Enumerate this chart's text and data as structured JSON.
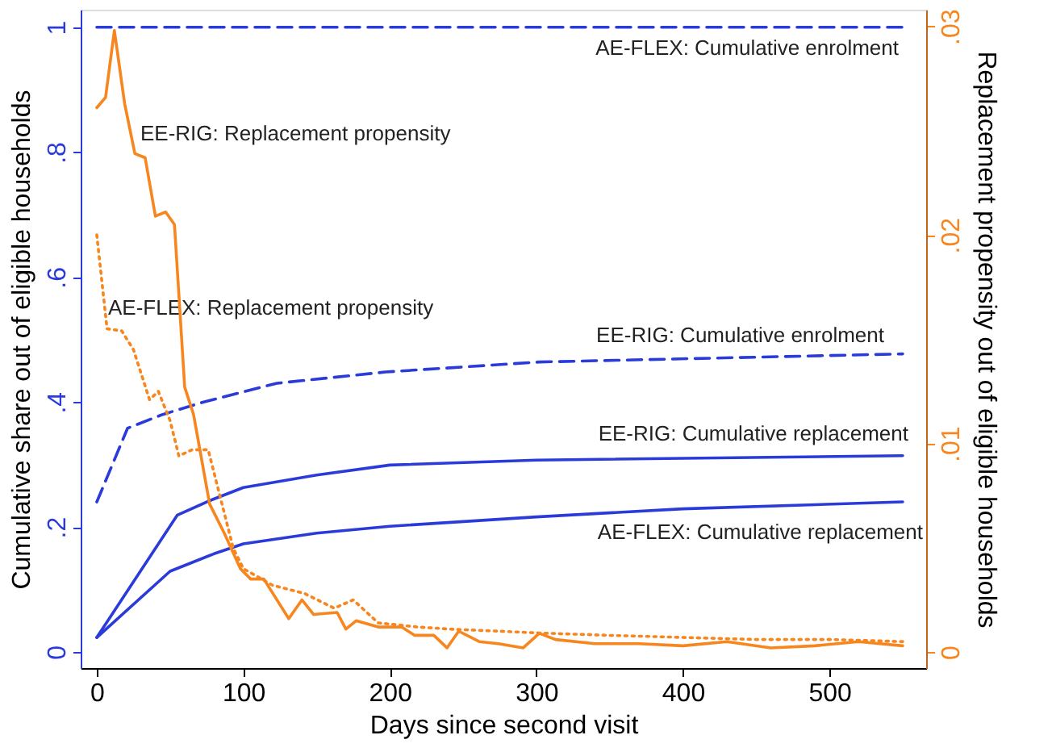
{
  "chart_data": {
    "type": "line",
    "xlabel": "Days since second visit",
    "ylabel": "Cumulative share out of eligible households",
    "y2label": "Replacement propensity out of eligible households",
    "xlim": [
      -11,
      566
    ],
    "xticks": [
      0,
      100,
      200,
      300,
      400,
      500
    ],
    "ylim": [
      -0.026,
      1.028
    ],
    "yticks": [
      {
        "value": 0,
        "label": "0"
      },
      {
        "value": 0.2,
        "label": ".2"
      },
      {
        "value": 0.4,
        "label": ".4"
      },
      {
        "value": 0.6,
        "label": ".6"
      },
      {
        "value": 0.8,
        "label": ".8"
      },
      {
        "value": 1,
        "label": "1"
      }
    ],
    "y2lim": [
      -0.00077,
      0.0308
    ],
    "y2ticks": [
      {
        "value": 0,
        "label": "0"
      },
      {
        "value": 0.01,
        "label": ".01"
      },
      {
        "value": 0.02,
        "label": ".02"
      },
      {
        "value": 0.03,
        "label": ".03"
      }
    ],
    "marker": "none",
    "series": [
      {
        "color": "#2b3bd9",
        "line_style": "dashed",
        "x": [
          0,
          550
        ],
        "values": [
          1,
          1
        ]
      },
      {
        "color": "#2b3bd9",
        "line_style": "dashed",
        "x": [
          0,
          21,
          45,
          73,
          123,
          197,
          302,
          550
        ],
        "values": [
          0.24,
          0.358,
          0.38,
          0.4,
          0.43,
          0.448,
          0.464,
          0.477
        ]
      },
      {
        "color": "#2b3bd9",
        "line_style": "solid",
        "x": [
          0,
          55,
          77,
          100,
          150,
          200,
          300,
          550
        ],
        "values": [
          0.023,
          0.219,
          0.242,
          0.263,
          0.283,
          0.299,
          0.307,
          0.314
        ]
      },
      {
        "color": "#2b3bd9",
        "line_style": "solid",
        "x": [
          0,
          50,
          80,
          100,
          150,
          200,
          300,
          400,
          550
        ],
        "values": [
          0.023,
          0.129,
          0.157,
          0.173,
          0.19,
          0.201,
          0.216,
          0.229,
          0.24
        ]
      },
      {
        "color": "#f7861e",
        "line_style": "solid",
        "axis": "y2",
        "x": [
          0,
          6,
          12,
          19,
          26,
          33,
          40,
          47,
          53,
          60,
          66,
          77,
          87,
          98,
          105,
          114,
          131,
          140,
          148,
          164,
          170,
          177,
          192,
          208,
          217,
          230,
          239,
          247,
          261,
          274,
          291,
          302,
          313,
          340,
          370,
          400,
          430,
          460,
          490,
          520,
          550
        ],
        "values": [
          0.0261,
          0.0266,
          0.0298,
          0.0263,
          0.0239,
          0.0237,
          0.0209,
          0.0211,
          0.0205,
          0.0127,
          0.0114,
          0.0071,
          0.0057,
          0.004,
          0.0035,
          0.0035,
          0.0016,
          0.0025,
          0.0018,
          0.0019,
          0.0011,
          0.0015,
          0.0012,
          0.0012,
          0.0008,
          0.0008,
          0.0002,
          0.001,
          0.0005,
          0.0004,
          0.0002,
          0.0009,
          0.0006,
          0.0004,
          0.0004,
          0.0003,
          0.0005,
          0.0002,
          0.0003,
          0.0005,
          0.0003
        ]
      },
      {
        "color": "#f7861e",
        "line_style": "dotted",
        "axis": "y2",
        "x": [
          0,
          7,
          17,
          25,
          36,
          42,
          50,
          56,
          65,
          76,
          84,
          93,
          100,
          120,
          142,
          162,
          175,
          192,
          219,
          241,
          274,
          307,
          350,
          400,
          450,
          500,
          550
        ],
        "values": [
          0.02,
          0.0155,
          0.0154,
          0.0145,
          0.0121,
          0.0125,
          0.0111,
          0.0094,
          0.0097,
          0.0097,
          0.0075,
          0.005,
          0.004,
          0.0032,
          0.0028,
          0.0021,
          0.0025,
          0.0014,
          0.0012,
          0.0011,
          0.001,
          0.0009,
          0.0008,
          0.0007,
          0.0006,
          0.0006,
          0.0005
        ]
      }
    ],
    "annotations": [
      "AE-FLEX: Cumulative enrolment",
      "EE-RIG: Replacement propensity",
      "AE-FLEX: Replacement propensity",
      "EE-RIG: Cumulative enrolment",
      "EE-RIG: Cumulative replacement",
      "AE-FLEX: Cumulative replacement"
    ]
  }
}
